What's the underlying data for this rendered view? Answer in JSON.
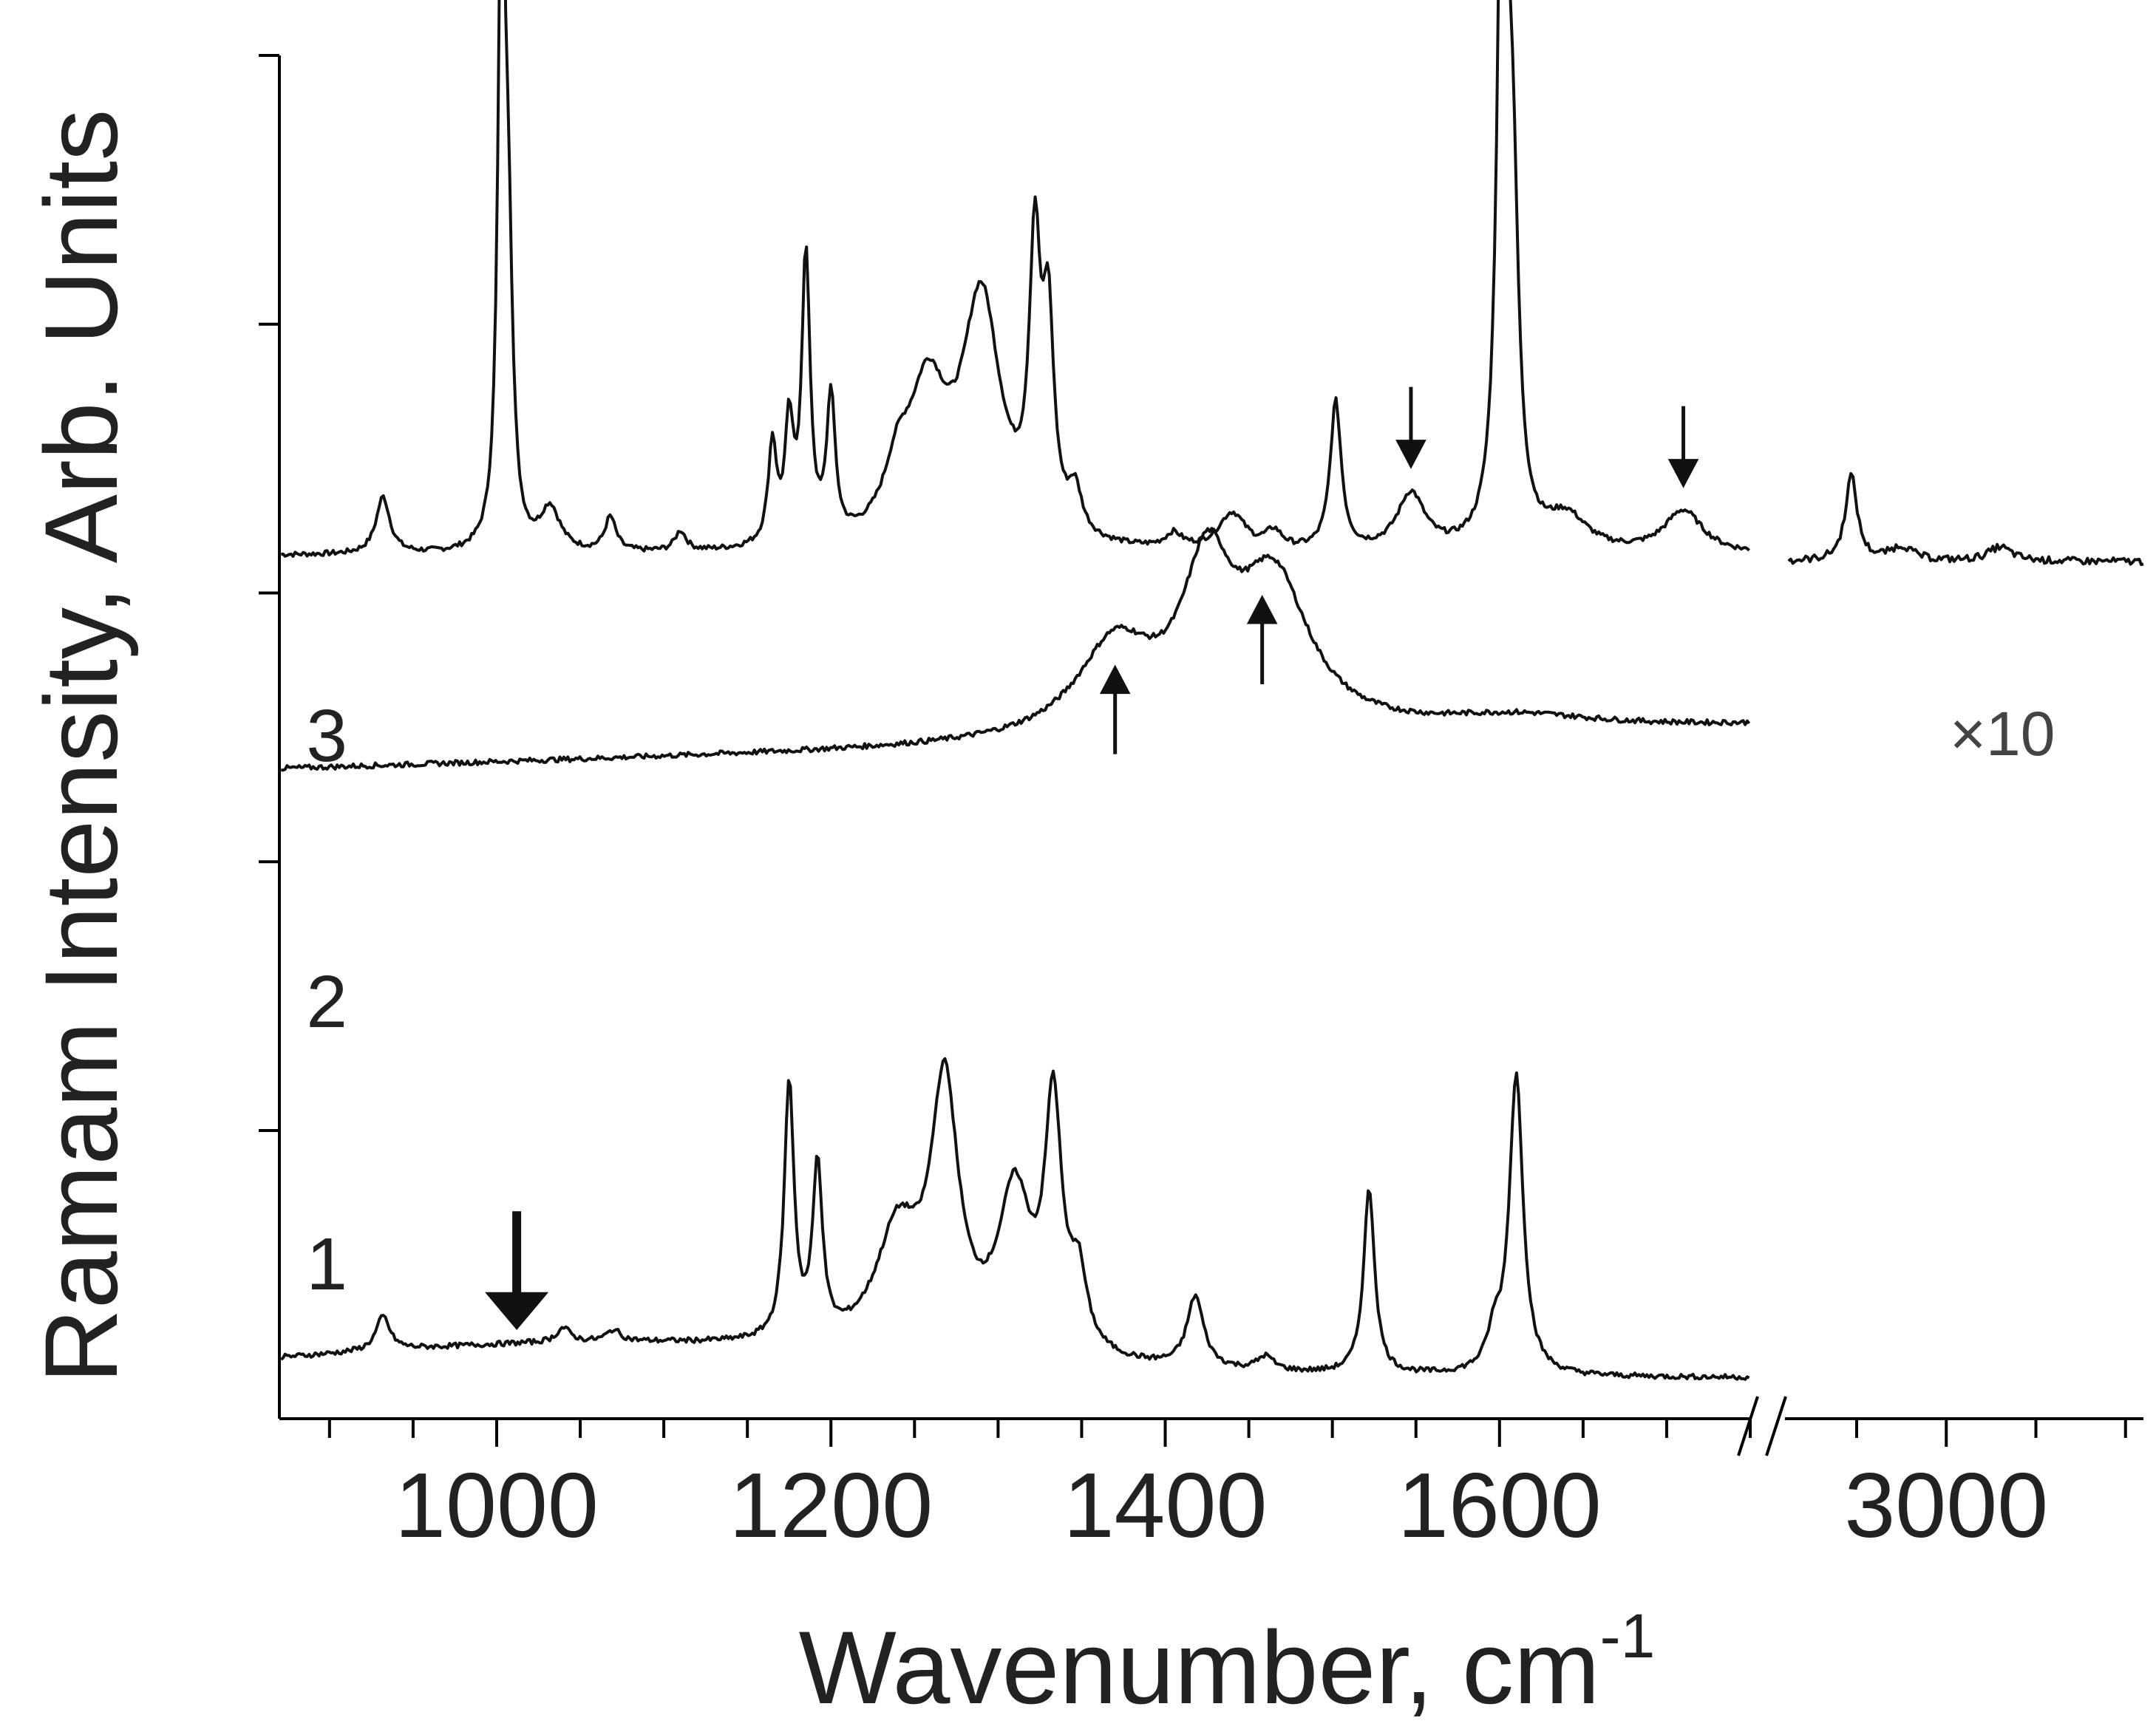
{
  "chart_data": {
    "type": "line",
    "title": "",
    "xlabel": "Wavenumber, cm",
    "xlabel_superscript": "-1",
    "ylabel": "Ramam Intensity, Arb. Units",
    "x_axis_break": true,
    "x_segments": [
      {
        "range": [
          870,
          1750
        ],
        "major_ticks": [
          1000,
          1200,
          1400,
          1600
        ],
        "minor_tick_step": 50
      },
      {
        "range": [
          2910,
          3110
        ],
        "major_ticks": [
          3000
        ],
        "minor_tick_step": 50
      }
    ],
    "y_ticks_unlabeled": 5,
    "grid": false,
    "legend": "none",
    "series": [
      {
        "name": "3",
        "baseline": 2.95,
        "peaks": [
          {
            "x": 932,
            "h": 0.2,
            "w": 5
          },
          {
            "x": 1003,
            "h": 2.3,
            "w": 2.5
          },
          {
            "x": 1007,
            "h": 0.9,
            "w": 3
          },
          {
            "x": 1032,
            "h": 0.15,
            "w": 7
          },
          {
            "x": 1068,
            "h": 0.12,
            "w": 4
          },
          {
            "x": 1110,
            "h": 0.07,
            "w": 4
          },
          {
            "x": 1165,
            "h": 0.35,
            "w": 3
          },
          {
            "x": 1175,
            "h": 0.4,
            "w": 3
          },
          {
            "x": 1185,
            "h": 1.0,
            "w": 3
          },
          {
            "x": 1200,
            "h": 0.5,
            "w": 3
          },
          {
            "x": 1240,
            "h": 0.2,
            "w": 10
          },
          {
            "x": 1258,
            "h": 0.5,
            "w": 14
          },
          {
            "x": 1290,
            "h": 0.85,
            "w": 14
          },
          {
            "x": 1322,
            "h": 0.95,
            "w": 4
          },
          {
            "x": 1330,
            "h": 0.7,
            "w": 4
          },
          {
            "x": 1346,
            "h": 0.15,
            "w": 5
          },
          {
            "x": 1405,
            "h": 0.05,
            "w": 6
          },
          {
            "x": 1440,
            "h": 0.13,
            "w": 10
          },
          {
            "x": 1465,
            "h": 0.06,
            "w": 6
          },
          {
            "x": 1502,
            "h": 0.52,
            "w": 4
          },
          {
            "x": 1547,
            "h": 0.2,
            "w": 10
          },
          {
            "x": 1602,
            "h": 2.8,
            "w": 3.5
          },
          {
            "x": 1608,
            "h": 1.0,
            "w": 4
          },
          {
            "x": 1640,
            "h": 0.12,
            "w": 15
          },
          {
            "x": 1710,
            "h": 0.15,
            "w": 14
          },
          {
            "x": 2947,
            "h": 0.3,
            "w": 4
          },
          {
            "x": 2975,
            "h": 0.05,
            "w": 8
          },
          {
            "x": 3030,
            "h": 0.05,
            "w": 8
          }
        ]
      },
      {
        "name": "2",
        "baseline": 2.2,
        "peaks": [
          {
            "x": 1370,
            "h": 0.32,
            "w": 28
          },
          {
            "x": 1425,
            "h": 0.52,
            "w": 18
          },
          {
            "x": 1465,
            "h": 0.52,
            "w": 26
          },
          {
            "x": 1610,
            "h": 0.05,
            "w": 60
          }
        ]
      },
      {
        "name": "1",
        "baseline": 0.0,
        "peaks": [
          {
            "x": 932,
            "h": 0.12,
            "w": 5
          },
          {
            "x": 1040,
            "h": 0.05,
            "w": 5
          },
          {
            "x": 1070,
            "h": 0.04,
            "w": 5
          },
          {
            "x": 1175,
            "h": 0.9,
            "w": 3.5
          },
          {
            "x": 1192,
            "h": 0.6,
            "w": 3.5
          },
          {
            "x": 1240,
            "h": 0.4,
            "w": 16
          },
          {
            "x": 1268,
            "h": 0.9,
            "w": 10
          },
          {
            "x": 1310,
            "h": 0.55,
            "w": 12
          },
          {
            "x": 1333,
            "h": 0.85,
            "w": 6
          },
          {
            "x": 1348,
            "h": 0.25,
            "w": 6
          },
          {
            "x": 1418,
            "h": 0.25,
            "w": 6
          },
          {
            "x": 1460,
            "h": 0.05,
            "w": 6
          },
          {
            "x": 1522,
            "h": 0.65,
            "w": 4
          },
          {
            "x": 1597,
            "h": 0.12,
            "w": 5
          },
          {
            "x": 1610,
            "h": 1.05,
            "w": 5
          }
        ]
      }
    ],
    "annotations": [
      {
        "text": "×10",
        "series": "3"
      }
    ],
    "markers": [
      {
        "type": "arrow-down-bold",
        "x": 1012,
        "series": "1"
      },
      {
        "type": "arrow-up",
        "x": 1370,
        "series": "2"
      },
      {
        "type": "arrow-up",
        "x": 1458,
        "series": "2"
      },
      {
        "type": "arrow-down",
        "x": 1547,
        "series": "3"
      },
      {
        "type": "arrow-down",
        "x": 1710,
        "series": "3"
      }
    ]
  }
}
